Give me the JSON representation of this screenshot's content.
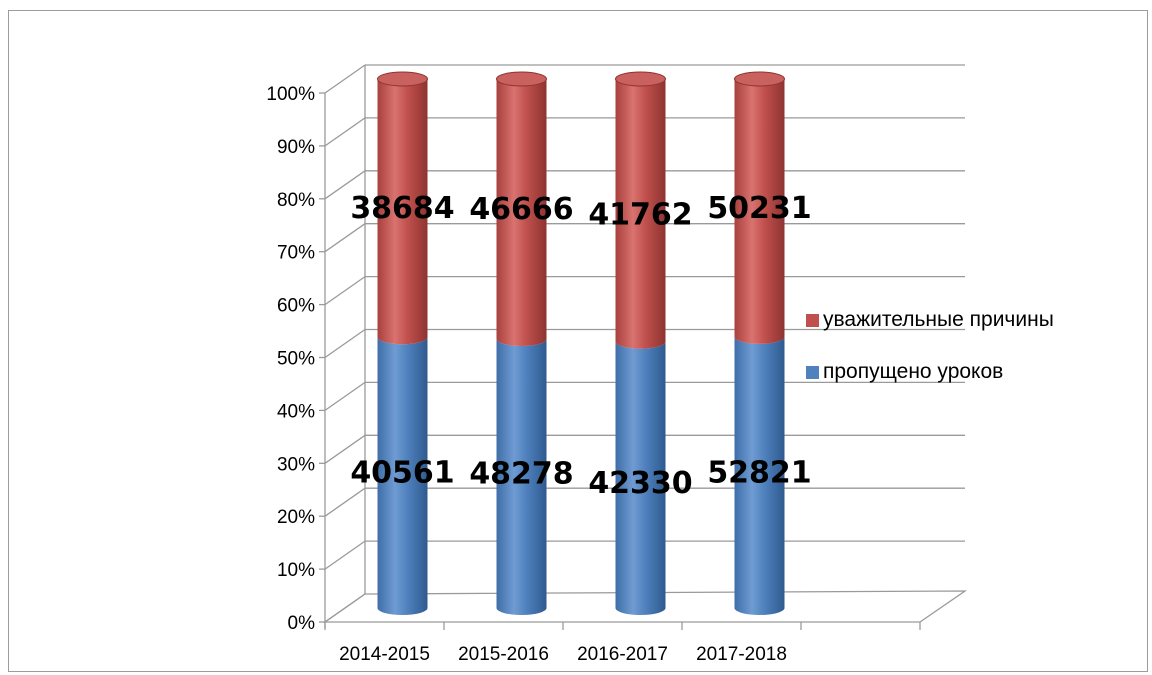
{
  "chart_data": {
    "type": "bar",
    "stacked": true,
    "normalized": true,
    "categories": [
      "2014-2015",
      "2015-2016",
      "2016-2017",
      "2017-2018"
    ],
    "series": [
      {
        "name": "пропущено уроков",
        "values": [
          40561,
          48278,
          42330,
          52821
        ],
        "color": "#4f81bd"
      },
      {
        "name": "уважительные причины",
        "values": [
          38684,
          46666,
          41762,
          50231
        ],
        "color": "#c0504d"
      }
    ],
    "y_ticks": [
      "0%",
      "10%",
      "20%",
      "30%",
      "40%",
      "50%",
      "60%",
      "70%",
      "80%",
      "90%",
      "100%"
    ],
    "ylim": [
      0,
      100
    ],
    "grid": true,
    "legend_position": "right",
    "style": "3d-cylinder"
  }
}
